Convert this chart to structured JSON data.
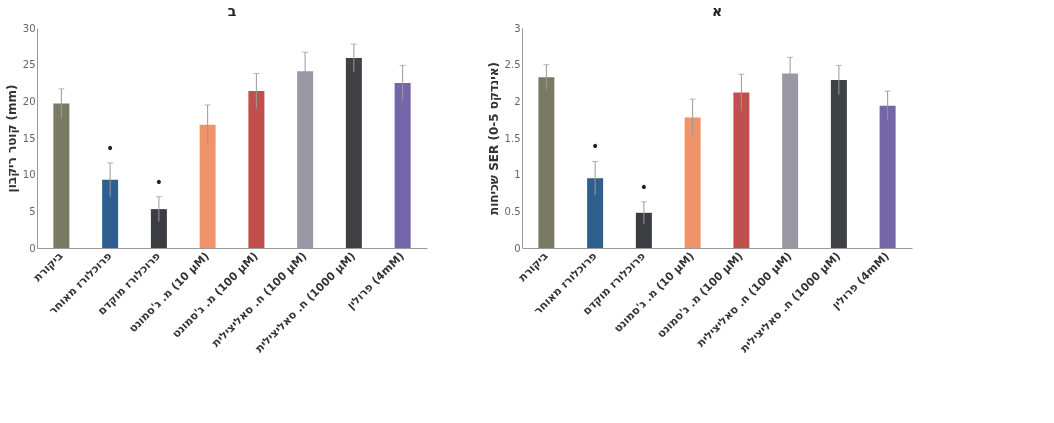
{
  "chart_data": [
    {
      "type": "bar",
      "title": "ב",
      "ylabel": "קוטר ריקבון (mm)",
      "categories": [
        "ביקורת",
        "פרוכלורז מאוחר",
        "פרוכלורז מוקדם",
        "מ. ג'סמונט (10 µM)",
        "מ. ג'סמונט (100 µM)",
        "ח. סאליצילית (100 µM)",
        "ח. סאליצילית (1000 µM)",
        "פרולין (4mM)"
      ],
      "values": [
        19.7,
        9.3,
        5.3,
        16.8,
        21.4,
        24.1,
        25.9,
        22.5
      ],
      "errors": [
        2.0,
        2.3,
        1.7,
        2.7,
        2.4,
        2.6,
        1.9,
        2.4
      ],
      "colors": [
        "#7a7a62",
        "#2e5f8e",
        "#3a3d42",
        "#f0936a",
        "#c0504d",
        "#9a98a4",
        "#3f4145",
        "#7466a8"
      ],
      "ylim": [
        0,
        30
      ],
      "yticks": [
        0,
        5,
        10,
        15,
        20,
        25,
        30
      ],
      "grid": false,
      "annotations": [
        {
          "text": "•",
          "x": "פרוכלורז מאוחר",
          "y": 11.6
        },
        {
          "text": "•",
          "x": "פרוכלורז מוקדם",
          "y": 7.0
        }
      ]
    },
    {
      "type": "bar",
      "title": "א",
      "ylabel": "שכיחות SER (אינדקס 0-5)",
      "categories": [
        "ביקורת",
        "פרוכלורז מאוחר",
        "פרוכלורז מוקדם",
        "מ. ג'סמונט (10 µM)",
        "מ. ג'סמונט (100 µM)",
        "ח. סאליצילית (100 µM)",
        "ח. סאליצילית (1000 µM)",
        "פרולין (4mM)"
      ],
      "values": [
        2.33,
        0.95,
        0.48,
        1.78,
        2.12,
        2.38,
        2.29,
        1.94
      ],
      "errors": [
        0.17,
        0.23,
        0.15,
        0.25,
        0.25,
        0.22,
        0.2,
        0.2
      ],
      "colors": [
        "#7a7a62",
        "#2e5f8e",
        "#3a3d42",
        "#f0936a",
        "#c0504d",
        "#9a98a4",
        "#3f4145",
        "#7466a8"
      ],
      "ylim": [
        0,
        3
      ],
      "yticks": [
        0,
        0.5,
        1,
        1.5,
        2,
        2.5,
        3
      ],
      "grid": false,
      "annotations": [
        {
          "text": "•",
          "x": "פרוכלורז מאוחר",
          "y": 1.18
        },
        {
          "text": "•",
          "x": "פרוכלורז מוקדם",
          "y": 0.63
        }
      ]
    }
  ]
}
